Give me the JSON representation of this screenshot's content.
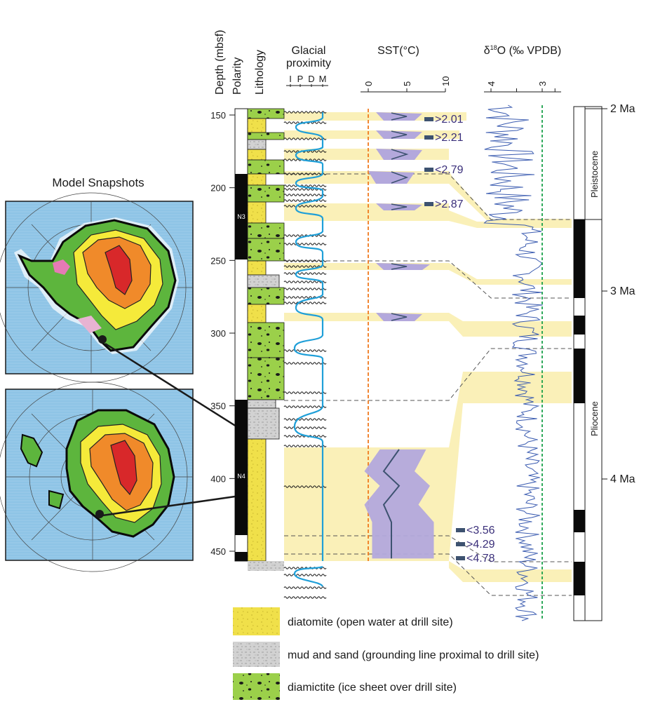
{
  "left_panel": {
    "title": "Model Snapshots"
  },
  "headers": {
    "depth": "Depth (mbsf)",
    "polarity": "Polarity",
    "lithology": "Lithology",
    "glacial_proximity": [
      "Glacial",
      "proximity"
    ],
    "glacial_codes": [
      "I",
      "P",
      "D",
      "M"
    ],
    "sst": "SST(°C)",
    "d18o_delta": "δ",
    "d18o_sup": "18",
    "d18o_rest": "O (‰ VPDB)"
  },
  "depth_axis": {
    "ticks": [
      150,
      200,
      250,
      300,
      350,
      400,
      450
    ]
  },
  "sst_axis": {
    "ticks": [
      0,
      5,
      10
    ]
  },
  "d18o_axis": {
    "ticks": [
      4,
      3
    ]
  },
  "polarity_zone_labels": [
    "N3",
    "N4"
  ],
  "age_labels": [
    ">2.01",
    ">2.21",
    "<2.79",
    ">2.87",
    "<3.56",
    ">4.29",
    "<4.78"
  ],
  "timescale": {
    "ages": [
      "2 Ma",
      "3 Ma",
      "4 Ma"
    ],
    "epochs": [
      "Pleistocene",
      "Pliocene"
    ]
  },
  "legend": [
    {
      "label": "diatomite (open water at drill site)",
      "color": "#f0e04a"
    },
    {
      "label": "mud and sand (grounding line proximal to drill site)",
      "color": "#c8c8c8"
    },
    {
      "label": "diamictite (ice sheet over drill site)",
      "color": "#9bd04a"
    }
  ],
  "colors": {
    "band": "#faf0b8",
    "sst_envelope": "#b3a8dc",
    "sst_line": "#3d5270",
    "proximity_curve": "#1f9fd8",
    "sst_zero_line": "#f07a1e",
    "d18o_ref_line": "#1aa04a",
    "d18o_line": "#3a5bb0",
    "ocean": "#8ec4e6"
  },
  "chart_data": {
    "type": "line",
    "depth_axis_range_mbsf": [
      140,
      480
    ],
    "sst_axis_range_c": [
      -1.5,
      10
    ],
    "d18o_axis_range_permil": [
      4.8,
      2.6
    ],
    "d18o_reference_value": 3.0,
    "sst_reference_value": 0,
    "sst_profile": {
      "depth": [
        380,
        395,
        405,
        418,
        430,
        442,
        455
      ],
      "mid_c": [
        4.0,
        2.0,
        4.0,
        2.0,
        3.0,
        3.0,
        3.0
      ],
      "low_c": [
        1.5,
        -0.5,
        1.5,
        -0.5,
        0.5,
        0.5,
        0.5
      ],
      "high_c": [
        7.5,
        6.0,
        8.0,
        6.5,
        8.5,
        8.5,
        8.5
      ]
    },
    "age_datums": [
      {
        "label": ">2.01",
        "depth_mbsf": 153
      },
      {
        "label": ">2.21",
        "depth_mbsf": 165
      },
      {
        "label": "<2.79",
        "depth_mbsf": 190
      },
      {
        "label": ">2.87",
        "depth_mbsf": 213
      },
      {
        "label": "<3.56",
        "depth_mbsf": 436
      },
      {
        "label": ">4.29",
        "depth_mbsf": 447
      },
      {
        "label": "<4.78",
        "depth_mbsf": 458
      }
    ],
    "age_axis_ma": [
      2,
      3,
      4
    ]
  }
}
